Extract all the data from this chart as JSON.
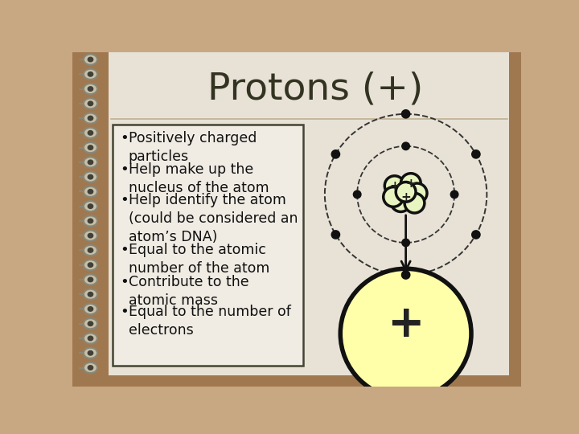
{
  "title": "Protons (+)",
  "title_fontsize": 34,
  "bg_color": "#c8a882",
  "paper_color": "#e8e2d6",
  "text_box_bg": "#f0ece4",
  "border_color": "#333322",
  "bullet_points": [
    "Positively charged\nparticles",
    "Help make up the\nnucleus of the atom",
    "Help identify the atom\n(could be considered an\natom’s DNA)",
    "Equal to the atomic\nnumber of the atom",
    "Contribute to the\natomic mass",
    "Equal to the number of\nelectrons"
  ],
  "text_fontsize": 12.5,
  "proton_fill": "#e8f5c0",
  "proton_outline": "#111111",
  "electron_color": "#111111",
  "atom_large_fill": "#ffffaa",
  "atom_large_outline": "#111111",
  "spiral_bg": "#a07850",
  "line_color": "#c0b090",
  "title_color": "#333322"
}
